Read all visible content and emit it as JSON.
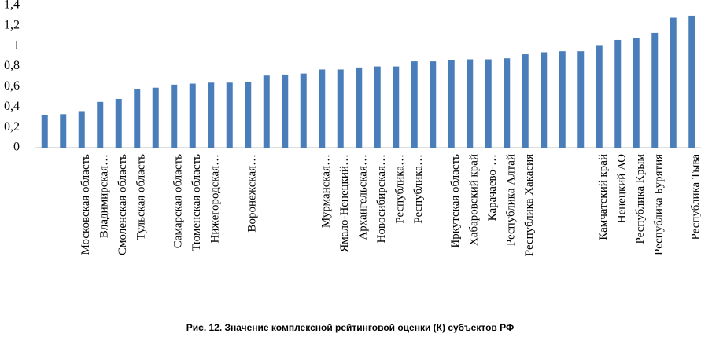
{
  "chart_data": {
    "type": "bar",
    "title": "Рис. 12. Значение комплексной рейтинговой оценки (К) субъектов РФ",
    "categories": [
      null,
      null,
      "Московская область",
      "Владимирская…",
      "Смоленская область",
      "Тульская область",
      null,
      "Самарская область",
      "Тюменская область",
      "Нижегородская…",
      null,
      "Воронежская…",
      null,
      null,
      null,
      "Мурманская…",
      "Ямало-Ненецкий…",
      "Архангельская…",
      "Новосибирская…",
      "Республика…",
      "Республика…",
      null,
      "Иркутская область",
      "Хабаровский край",
      "Карачаево-…",
      "Республика Алтай",
      "Республика Хакасия",
      null,
      null,
      null,
      "Камчатский край",
      "Ненецкий АО",
      "Республика Крым",
      "Республика Бурятия",
      null,
      "Республика Тыва"
    ],
    "values": [
      0.32,
      0.33,
      0.36,
      0.45,
      0.48,
      0.58,
      0.59,
      0.62,
      0.63,
      0.64,
      0.64,
      0.65,
      0.71,
      0.72,
      0.73,
      0.77,
      0.77,
      0.79,
      0.8,
      0.8,
      0.85,
      0.85,
      0.86,
      0.87,
      0.87,
      0.88,
      0.92,
      0.94,
      0.95,
      0.95,
      1.01,
      1.06,
      1.08,
      1.13,
      1.28,
      1.3
    ],
    "color": "#4a7ebb",
    "ylim": [
      0,
      1.4
    ],
    "yticks": [
      0,
      {
        "value": 0.2,
        "label": "0,2"
      },
      {
        "value": 0.4,
        "label": "0,4"
      },
      {
        "value": 0.6,
        "label": "0,6"
      },
      {
        "value": 0.8,
        "label": "0,8"
      },
      1,
      {
        "value": 1.2,
        "label": "1,2"
      },
      {
        "value": 1.4,
        "label": "1,4"
      }
    ],
    "grid": false
  }
}
